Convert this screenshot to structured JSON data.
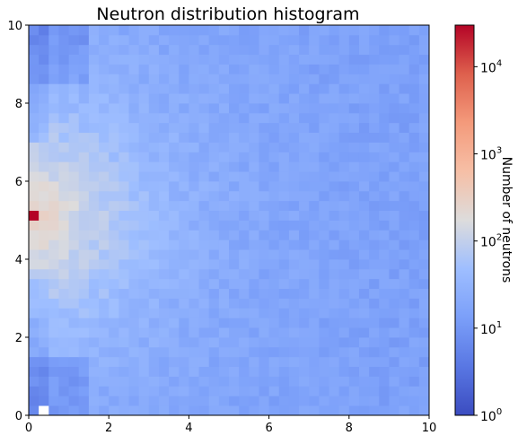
{
  "chart_data": {
    "type": "heatmap",
    "title": "Neutron distribution histogram",
    "xlabel": "",
    "ylabel": "",
    "xlim": [
      0,
      10
    ],
    "ylim": [
      0,
      10
    ],
    "x_ticks": [
      "0",
      "2",
      "4",
      "6",
      "8",
      "10"
    ],
    "y_ticks": [
      "0",
      "2",
      "4",
      "6",
      "8",
      "10"
    ],
    "bins": {
      "x": 40,
      "y": 40,
      "bin_width": 0.25
    },
    "grid": false,
    "colormap": "coolwarm",
    "color_scale": "log",
    "colorbar": {
      "label": "Number of neutrons",
      "range": [
        1,
        30000
      ],
      "ticks": [
        {
          "base": "10",
          "exp": "0"
        },
        {
          "base": "10",
          "exp": "1"
        },
        {
          "base": "10",
          "exp": "2"
        },
        {
          "base": "10",
          "exp": "3"
        },
        {
          "base": "10",
          "exp": "4"
        }
      ]
    },
    "notable_cells": [
      {
        "x_range": [
          0.0,
          0.25
        ],
        "y_range": [
          5.0,
          5.25
        ],
        "count": 30000,
        "note": "source bin (maximum)"
      },
      {
        "x_range": [
          0.25,
          0.5
        ],
        "y_range": [
          0.0,
          0.25
        ],
        "count": 0,
        "note": "empty bin (white)"
      }
    ],
    "distribution": {
      "description": "Counts peak near the source at (0, 5.1) and decay radially; background ~5-40 counts per bin, lower near bottom-left and top-left corners",
      "peak_center": [
        0.1,
        5.1
      ],
      "background_counts": [
        5,
        40
      ]
    }
  }
}
